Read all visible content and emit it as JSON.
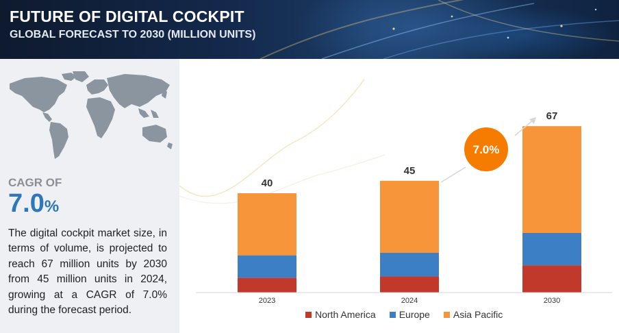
{
  "header": {
    "title": "FUTURE OF DIGITAL COCKPIT",
    "subtitle": "GLOBAL FORECAST TO 2030 (MILLION UNITS)"
  },
  "left_panel": {
    "cagr_label": "CAGR OF",
    "cagr_number": "7.0",
    "cagr_percent_sign": "%",
    "description": "The digital cockpit market size, in terms of volume, is projected to reach 67 million units by 2030 from 45 million units in 2024, growing at a CAGR of 7.0% during the forecast period."
  },
  "colors": {
    "north_america": "#c0392b",
    "europe": "#3c7fc4",
    "asia_pacific": "#f7953b",
    "cagr_bubble": "#f57c00",
    "accent_blue": "#2f77b8"
  },
  "chart_data": {
    "type": "bar",
    "stacked": true,
    "categories": [
      "2023",
      "2024",
      "2030"
    ],
    "series": [
      {
        "name": "North America",
        "values": [
          6.0,
          6.5,
          11.0
        ],
        "color": "#c0392b"
      },
      {
        "name": "Europe",
        "values": [
          9.0,
          9.5,
          13.0
        ],
        "color": "#3c7fc4"
      },
      {
        "name": "Asia Pacific",
        "values": [
          25.0,
          29.0,
          43.0
        ],
        "color": "#f7953b"
      }
    ],
    "totals": [
      "40",
      "45",
      "67"
    ],
    "cagr_annotation": "7.0%",
    "legend_position": "bottom",
    "ylim": [
      0,
      72
    ],
    "grid": false
  }
}
